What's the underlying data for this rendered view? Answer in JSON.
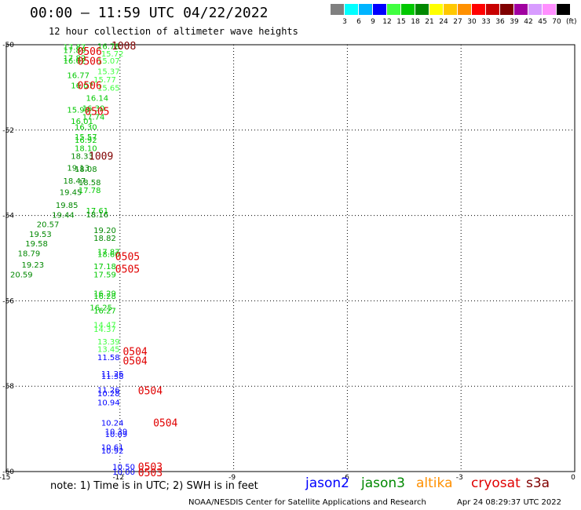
{
  "header": {
    "title": "00:00 – 11:59 UTC 04/22/2022",
    "subtitle": "12 hour collection of altimeter wave heights"
  },
  "colorscale": {
    "labels": [
      "3",
      "6",
      "9",
      "12",
      "15",
      "18",
      "21",
      "24",
      "27",
      "30",
      "33",
      "36",
      "39",
      "42",
      "45",
      "70"
    ],
    "unit": "(ft)",
    "colors": [
      "#808080",
      "#00ffff",
      "#00b4ff",
      "#0000ff",
      "#40ff40",
      "#00c800",
      "#008800",
      "#ffff00",
      "#ffc800",
      "#ff9000",
      "#ff0000",
      "#c80000",
      "#800000",
      "#a000a0",
      "#d89cff",
      "#ff90ff",
      "#000000"
    ]
  },
  "footer": {
    "note": "note: 1) Time is in UTC; 2) SWH is in feet",
    "legend": [
      {
        "name": "jason2",
        "color": "#0000ff"
      },
      {
        "name": "jason3",
        "color": "#008800"
      },
      {
        "name": "altika",
        "color": "#ff9000"
      },
      {
        "name": "cryosat",
        "color": "#e00000"
      },
      {
        "name": "s3a",
        "color": "#800000"
      }
    ],
    "credit": "NOAA/NESDIS Center for Satellite Applications and Research",
    "timestamp": "Apr 24 08:29:37 UTC 2022"
  },
  "chart_data": {
    "type": "scatter",
    "xlim": [
      -15,
      0
    ],
    "ylim": [
      -60,
      -50
    ],
    "x_ticks": [
      "-15",
      "-12",
      "-9",
      "-6",
      "-3",
      "0"
    ],
    "y_ticks": [
      "-50",
      "-52",
      "-54",
      "-56",
      "-58",
      "-60"
    ],
    "grid": true,
    "points": [
      {
        "x": -13.2,
        "y": -50.05,
        "label": "17.87",
        "color": "#00c800"
      },
      {
        "x": -13.2,
        "y": -50.12,
        "label": "17.89",
        "color": "#00c800"
      },
      {
        "x": -12.3,
        "y": -50.03,
        "label": "16.78",
        "color": "#00c800"
      },
      {
        "x": -12.2,
        "y": -50.2,
        "label": "15.72",
        "color": "#40ff40"
      },
      {
        "x": -13.2,
        "y": -50.3,
        "label": "17.82",
        "color": "#00c800"
      },
      {
        "x": -13.2,
        "y": -50.37,
        "label": "16.62",
        "color": "#00c800"
      },
      {
        "x": -12.3,
        "y": -50.37,
        "label": "15.07",
        "color": "#40ff40"
      },
      {
        "x": -12.3,
        "y": -50.62,
        "label": "15.37",
        "color": "#40ff40"
      },
      {
        "x": -13.1,
        "y": -50.71,
        "label": "16.77",
        "color": "#00c800"
      },
      {
        "x": -12.4,
        "y": -50.81,
        "label": "15.77",
        "color": "#40ff40"
      },
      {
        "x": -13.0,
        "y": -50.95,
        "label": "16.07",
        "color": "#00c800"
      },
      {
        "x": -12.3,
        "y": -51.0,
        "label": "15.65",
        "color": "#40ff40"
      },
      {
        "x": -12.6,
        "y": -51.24,
        "label": "16.14",
        "color": "#00c800"
      },
      {
        "x": -13.1,
        "y": -51.52,
        "label": "15.93",
        "color": "#00c800"
      },
      {
        "x": -12.7,
        "y": -51.48,
        "label": "16.30",
        "color": "#00c800"
      },
      {
        "x": -12.7,
        "y": -51.68,
        "label": "17.74",
        "color": "#00c800"
      },
      {
        "x": -13.0,
        "y": -51.78,
        "label": "16.01",
        "color": "#00c800"
      },
      {
        "x": -12.9,
        "y": -51.92,
        "label": "16.30",
        "color": "#00c800"
      },
      {
        "x": -12.9,
        "y": -52.15,
        "label": "15.57",
        "color": "#00c800"
      },
      {
        "x": -12.9,
        "y": -52.22,
        "label": "16.92",
        "color": "#00c800"
      },
      {
        "x": -12.9,
        "y": -52.42,
        "label": "18.10",
        "color": "#00c800"
      },
      {
        "x": -13.0,
        "y": -52.6,
        "label": "18.33",
        "color": "#008800"
      },
      {
        "x": -13.1,
        "y": -52.88,
        "label": "19.13",
        "color": "#008800"
      },
      {
        "x": -12.9,
        "y": -52.9,
        "label": "18.08",
        "color": "#008800"
      },
      {
        "x": -13.2,
        "y": -53.18,
        "label": "18.47",
        "color": "#008800"
      },
      {
        "x": -12.8,
        "y": -53.22,
        "label": "18.58",
        "color": "#008800"
      },
      {
        "x": -13.3,
        "y": -53.45,
        "label": "19.45",
        "color": "#008800"
      },
      {
        "x": -12.8,
        "y": -53.4,
        "label": "17.78",
        "color": "#00c800"
      },
      {
        "x": -13.4,
        "y": -53.75,
        "label": "19.85",
        "color": "#008800"
      },
      {
        "x": -12.6,
        "y": -53.88,
        "label": "17.61",
        "color": "#00c800"
      },
      {
        "x": -13.5,
        "y": -53.98,
        "label": "19.44",
        "color": "#008800"
      },
      {
        "x": -12.6,
        "y": -53.97,
        "label": "18.16",
        "color": "#008800"
      },
      {
        "x": -13.9,
        "y": -54.2,
        "label": "20.57",
        "color": "#008800"
      },
      {
        "x": -12.4,
        "y": -54.34,
        "label": "19.20",
        "color": "#008800"
      },
      {
        "x": -14.1,
        "y": -54.43,
        "label": "19.53",
        "color": "#008800"
      },
      {
        "x": -12.4,
        "y": -54.52,
        "label": "18.82",
        "color": "#008800"
      },
      {
        "x": -14.2,
        "y": -54.65,
        "label": "19.58",
        "color": "#008800"
      },
      {
        "x": -14.4,
        "y": -54.88,
        "label": "18.79",
        "color": "#008800"
      },
      {
        "x": -12.3,
        "y": -54.84,
        "label": "17.87",
        "color": "#00c800"
      },
      {
        "x": -12.3,
        "y": -54.9,
        "label": "18.60",
        "color": "#00c800"
      },
      {
        "x": -14.3,
        "y": -55.15,
        "label": "19.23",
        "color": "#008800"
      },
      {
        "x": -12.4,
        "y": -55.18,
        "label": "17.18",
        "color": "#00c800"
      },
      {
        "x": -14.6,
        "y": -55.38,
        "label": "20.59",
        "color": "#008800"
      },
      {
        "x": -12.4,
        "y": -55.38,
        "label": "17.59",
        "color": "#00c800"
      },
      {
        "x": -12.4,
        "y": -55.82,
        "label": "16.29",
        "color": "#00c800"
      },
      {
        "x": -12.4,
        "y": -55.88,
        "label": "16.28",
        "color": "#00c800"
      },
      {
        "x": -12.5,
        "y": -56.15,
        "label": "16.25",
        "color": "#00c800"
      },
      {
        "x": -12.4,
        "y": -56.22,
        "label": "16.27",
        "color": "#00c800"
      },
      {
        "x": -12.4,
        "y": -56.55,
        "label": "14.47",
        "color": "#40ff40"
      },
      {
        "x": -12.4,
        "y": -56.65,
        "label": "14.37",
        "color": "#40ff40"
      },
      {
        "x": -12.3,
        "y": -56.95,
        "label": "13.39",
        "color": "#40ff40"
      },
      {
        "x": -12.3,
        "y": -57.12,
        "label": "13.45",
        "color": "#40ff40"
      },
      {
        "x": -12.3,
        "y": -57.32,
        "label": "11.58",
        "color": "#0000ff"
      },
      {
        "x": -12.2,
        "y": -57.7,
        "label": "11.26",
        "color": "#0000ff"
      },
      {
        "x": -12.2,
        "y": -57.76,
        "label": "11.38",
        "color": "#0000ff"
      },
      {
        "x": -12.3,
        "y": -58.08,
        "label": "11.26",
        "color": "#0000ff"
      },
      {
        "x": -12.3,
        "y": -58.16,
        "label": "10.28",
        "color": "#0000ff"
      },
      {
        "x": -12.3,
        "y": -58.37,
        "label": "10.94",
        "color": "#0000ff"
      },
      {
        "x": -12.2,
        "y": -58.85,
        "label": "10.24",
        "color": "#0000ff"
      },
      {
        "x": -12.1,
        "y": -59.05,
        "label": "10.39",
        "color": "#0000ff"
      },
      {
        "x": -12.1,
        "y": -59.12,
        "label": "10.09",
        "color": "#0000ff"
      },
      {
        "x": -12.2,
        "y": -59.42,
        "label": "10.61",
        "color": "#0000ff"
      },
      {
        "x": -12.2,
        "y": -59.5,
        "label": "10.92",
        "color": "#0000ff"
      },
      {
        "x": -11.9,
        "y": -59.88,
        "label": "10.50",
        "color": "#0000ff"
      },
      {
        "x": -11.9,
        "y": -60.0,
        "label": "10.00",
        "color": "#0000ff"
      }
    ],
    "annotations": [
      {
        "x": -11.9,
        "y": -50.02,
        "label": "1008",
        "color": "#800000"
      },
      {
        "x": -12.8,
        "y": -50.15,
        "label": "0506",
        "color": "#e00000"
      },
      {
        "x": -12.8,
        "y": -50.38,
        "label": "0506",
        "color": "#e00000"
      },
      {
        "x": -12.8,
        "y": -50.95,
        "label": "0506",
        "color": "#e00000"
      },
      {
        "x": -12.6,
        "y": -51.55,
        "label": "0505",
        "color": "#e00000"
      },
      {
        "x": -12.5,
        "y": -52.6,
        "label": "1009",
        "color": "#800000"
      },
      {
        "x": -11.8,
        "y": -54.95,
        "label": "0505",
        "color": "#e00000"
      },
      {
        "x": -11.8,
        "y": -55.25,
        "label": "0505",
        "color": "#e00000"
      },
      {
        "x": -11.6,
        "y": -57.18,
        "label": "0504",
        "color": "#e00000"
      },
      {
        "x": -11.6,
        "y": -57.4,
        "label": "0504",
        "color": "#e00000"
      },
      {
        "x": -11.2,
        "y": -58.1,
        "label": "0504",
        "color": "#e00000"
      },
      {
        "x": -10.8,
        "y": -58.85,
        "label": "0504",
        "color": "#e00000"
      },
      {
        "x": -11.2,
        "y": -59.88,
        "label": "0503",
        "color": "#e00000"
      },
      {
        "x": -11.2,
        "y": -60.02,
        "label": "0503",
        "color": "#e00000"
      }
    ]
  }
}
